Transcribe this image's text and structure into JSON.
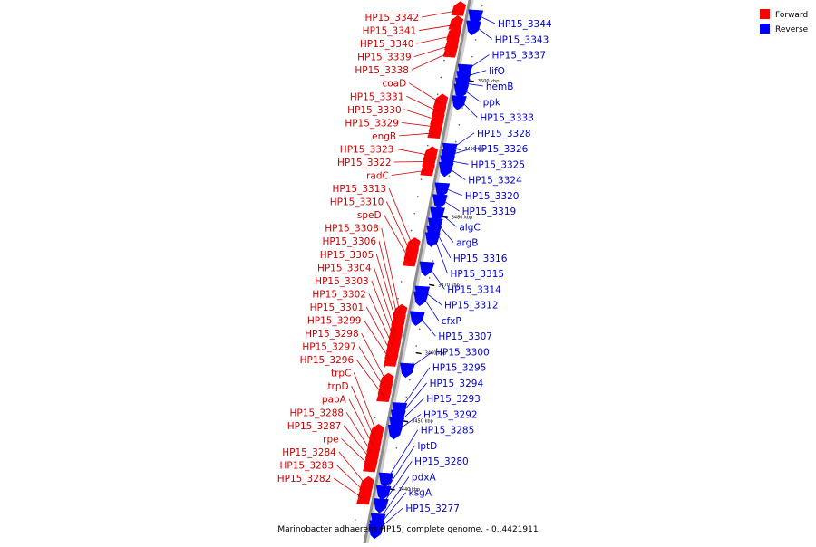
{
  "legend": [
    {
      "label": "Forward",
      "color": "#ff0000"
    },
    {
      "label": "Reverse",
      "color": "#0000ff"
    }
  ],
  "caption": "Marinobacter adhaerens HP15, complete genome. - 0..4421911",
  "colors": {
    "forward": "#ff0000",
    "reverse": "#0000ff",
    "forward_label": "#cc0000",
    "reverse_label": "#0000cc",
    "backbone": "#8c8c8c",
    "leader": "#666666"
  },
  "axis": {
    "range_kbp": [
      3434,
      3512
    ],
    "ticks": [
      "3440 kbp",
      "3450 kbp",
      "3460 kbp",
      "3470 kbp",
      "3480 kbp",
      "3490 kbp",
      "3500 kbp"
    ]
  },
  "forward_genes": [
    {
      "label": "HP15_3342",
      "pos": 3510.3
    },
    {
      "label": "HP15_3341",
      "pos": 3508.2
    },
    {
      "label": "HP15_3340",
      "pos": 3506.6
    },
    {
      "label": "HP15_3339",
      "pos": 3505.2
    },
    {
      "label": "HP15_3338",
      "pos": 3504.2
    },
    {
      "label": "coaD",
      "pos": 3496.7
    },
    {
      "label": "HP15_3331",
      "pos": 3495.4
    },
    {
      "label": "HP15_3330",
      "pos": 3494.2
    },
    {
      "label": "HP15_3329",
      "pos": 3493.2
    },
    {
      "label": "engB",
      "pos": 3492.3
    },
    {
      "label": "HP15_3323",
      "pos": 3489.0
    },
    {
      "label": "HP15_3322",
      "pos": 3488.1
    },
    {
      "label": "radC",
      "pos": 3486.8
    },
    {
      "label": "HP15_3313",
      "pos": 3475.6
    },
    {
      "label": "HP15_3310",
      "pos": 3474.5
    },
    {
      "label": "speD",
      "pos": 3473.5
    },
    {
      "label": "HP15_3308",
      "pos": 3465.8
    },
    {
      "label": "HP15_3306",
      "pos": 3464.7
    },
    {
      "label": "HP15_3305",
      "pos": 3463.9
    },
    {
      "label": "HP15_3304",
      "pos": 3462.8
    },
    {
      "label": "HP15_3303",
      "pos": 3461.8
    },
    {
      "label": "HP15_3302",
      "pos": 3460.8
    },
    {
      "label": "HP15_3301",
      "pos": 3459.8
    },
    {
      "label": "HP15_3299",
      "pos": 3458.8
    },
    {
      "label": "HP15_3298",
      "pos": 3455.7
    },
    {
      "label": "HP15_3297",
      "pos": 3454.6
    },
    {
      "label": "HP15_3296",
      "pos": 3453.6
    },
    {
      "label": "trpC",
      "pos": 3448.2
    },
    {
      "label": "trpD",
      "pos": 3447.1
    },
    {
      "label": "pabA",
      "pos": 3446.1
    },
    {
      "label": "HP15_3288",
      "pos": 3445.1
    },
    {
      "label": "HP15_3287",
      "pos": 3444.2
    },
    {
      "label": "rpe",
      "pos": 3443.3
    },
    {
      "label": "HP15_3284",
      "pos": 3440.5
    },
    {
      "label": "HP15_3283",
      "pos": 3439.5
    },
    {
      "label": "HP15_3282",
      "pos": 3438.5
    }
  ],
  "reverse_genes": [
    {
      "label": "HP15_3344",
      "pos": 3509.6
    },
    {
      "label": "HP15_3343",
      "pos": 3508.0
    },
    {
      "label": "HP15_3337",
      "pos": 3501.6
    },
    {
      "label": "lifO",
      "pos": 3500.6
    },
    {
      "label": "hemB",
      "pos": 3499.6
    },
    {
      "label": "ppk",
      "pos": 3498.7
    },
    {
      "label": "HP15_3333",
      "pos": 3497.0
    },
    {
      "label": "HP15_3328",
      "pos": 3490.0
    },
    {
      "label": "HP15_3326",
      "pos": 3489.1
    },
    {
      "label": "HP15_3325",
      "pos": 3488.2
    },
    {
      "label": "HP15_3324",
      "pos": 3487.2
    },
    {
      "label": "HP15_3320",
      "pos": 3484.2
    },
    {
      "label": "HP15_3319",
      "pos": 3482.5
    },
    {
      "label": "algC",
      "pos": 3480.6
    },
    {
      "label": "argB",
      "pos": 3479.0
    },
    {
      "label": "HP15_3316",
      "pos": 3477.9
    },
    {
      "label": "HP15_3315",
      "pos": 3476.9
    },
    {
      "label": "HP15_3314",
      "pos": 3472.6
    },
    {
      "label": "HP15_3312",
      "pos": 3469.0
    },
    {
      "label": "cfxP",
      "pos": 3468.2
    },
    {
      "label": "HP15_3307",
      "pos": 3465.3
    },
    {
      "label": "HP15_3300",
      "pos": 3457.7
    },
    {
      "label": "HP15_3295",
      "pos": 3451.9
    },
    {
      "label": "HP15_3294",
      "pos": 3450.8
    },
    {
      "label": "HP15_3293",
      "pos": 3449.7
    },
    {
      "label": "HP15_3292",
      "pos": 3448.6
    },
    {
      "label": "HP15_3285",
      "pos": 3441.6
    },
    {
      "label": "lptD",
      "pos": 3439.7
    },
    {
      "label": "HP15_3280",
      "pos": 3437.8
    },
    {
      "label": "pdxA",
      "pos": 3435.6
    },
    {
      "label": "ksgA",
      "pos": 3434.6
    },
    {
      "label": "HP15_3277",
      "pos": 3434.0
    }
  ]
}
